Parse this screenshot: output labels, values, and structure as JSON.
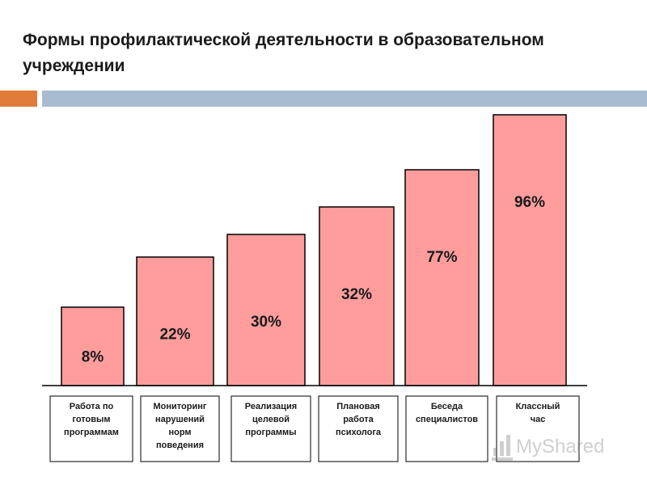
{
  "slide": {
    "colors": {
      "bar_fill": "#ff9d9d",
      "accent_orange": "#e07b39",
      "accent_blue": "#a7bcd1"
    },
    "watermark": {
      "text": "MyShared",
      "icon": "bar-chart-icon"
    }
  },
  "chart_data": {
    "type": "bar",
    "title": "Формы профилактической деятельности в образовательном учреждении",
    "xlabel": "",
    "ylabel": "",
    "ylim": [
      0,
      100
    ],
    "grid": false,
    "legend": "none",
    "categories": [
      [
        "Работа по",
        "готовым",
        "программам"
      ],
      [
        "Мониторинг",
        "нарушений",
        "норм",
        "поведения"
      ],
      [
        "Реализация",
        "целевой",
        "программы"
      ],
      [
        "Плановая",
        "работа",
        "психолога"
      ],
      [
        "Беседа",
        "специалистов"
      ],
      [
        "Классный",
        "час"
      ]
    ],
    "values": [
      8,
      22,
      30,
      32,
      77,
      96
    ],
    "value_labels": [
      "8%",
      "22%",
      "30%",
      "32%",
      "77%",
      "96%"
    ]
  }
}
